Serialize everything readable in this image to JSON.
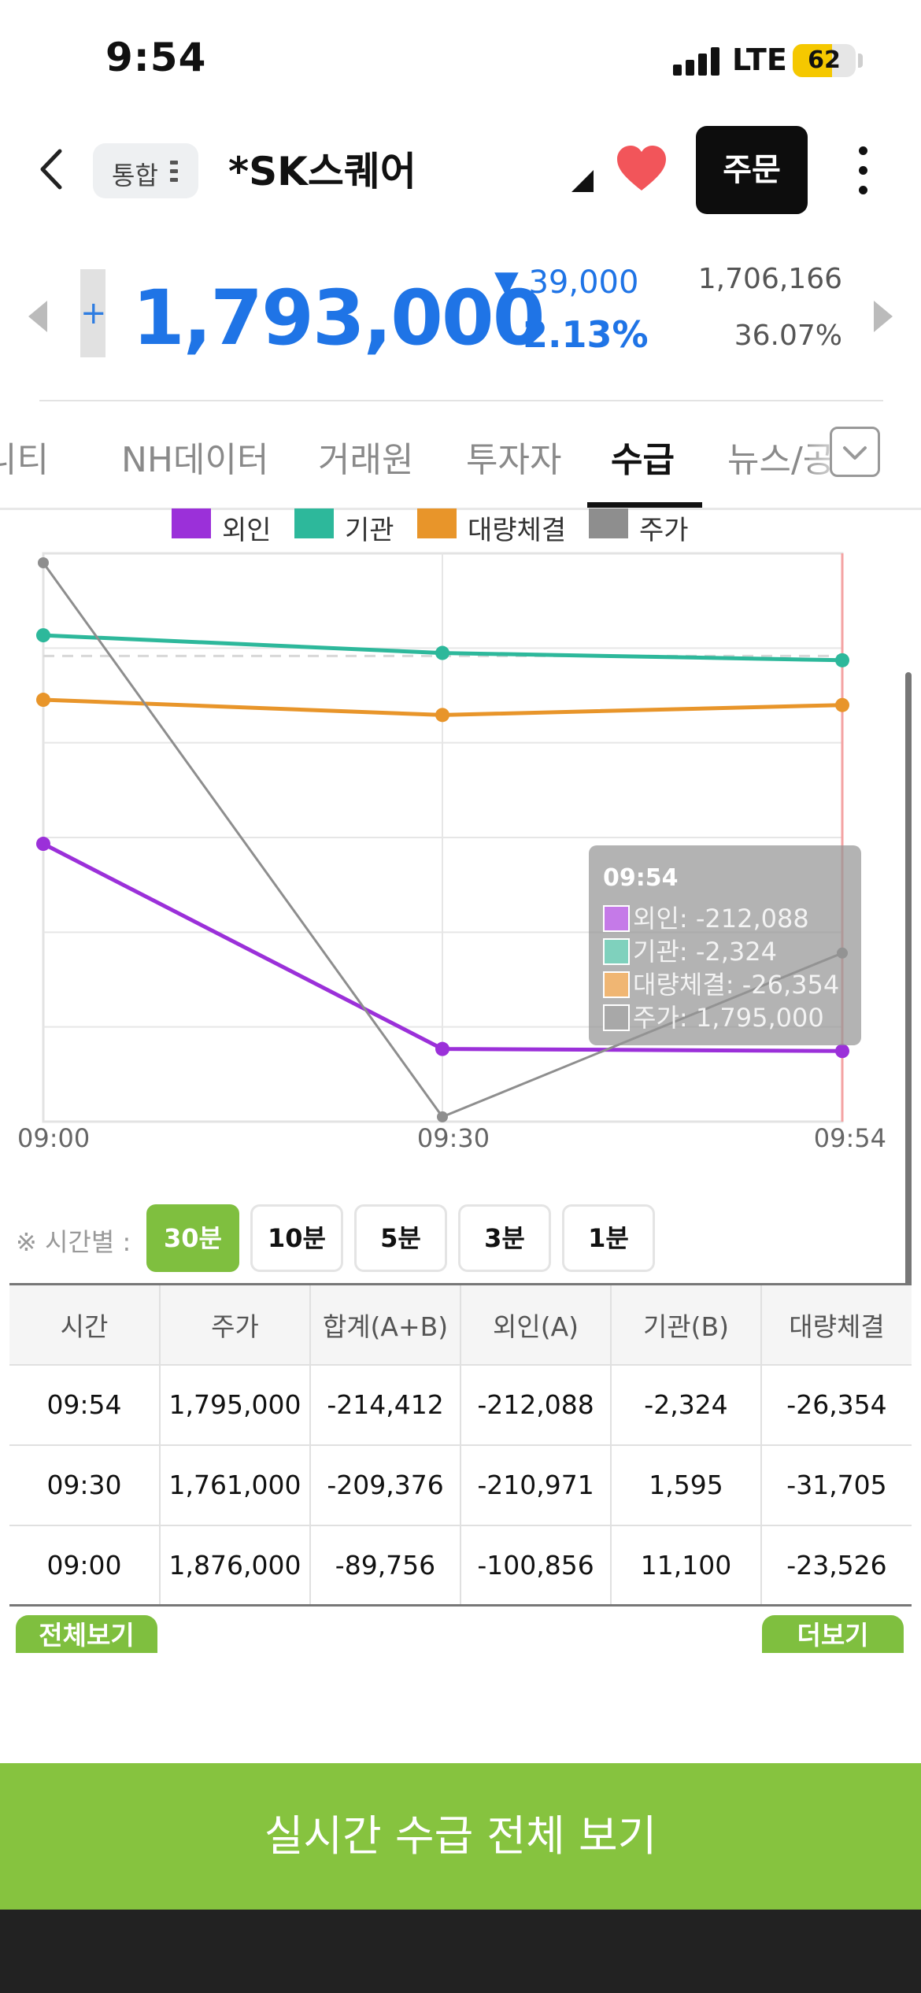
{
  "status_bar": {
    "time": "9:54",
    "network": "LTE",
    "battery": "62",
    "battery_level": 0.62
  },
  "header": {
    "market": "통합",
    "stock_name": "*SK스퀘어",
    "order_label": "주문"
  },
  "price": {
    "plus": "+",
    "current": "1,793,000",
    "change_amount": "▼ 39,000",
    "change_percent": "2.13%",
    "volume": "1,706,166",
    "turnover": "36.07%"
  },
  "tabs": [
    {
      "label": "커뮤니티"
    },
    {
      "label": "NH데이터"
    },
    {
      "label": "거래원"
    },
    {
      "label": "투자자"
    },
    {
      "label": "수급"
    },
    {
      "label": "뉴스/공시"
    }
  ],
  "chart_data": {
    "type": "line",
    "x": [
      "09:00",
      "09:30",
      "09:54"
    ],
    "legend": [
      "외인",
      "기관",
      "대량체결",
      "주가"
    ],
    "series": [
      {
        "name": "외인",
        "color": "#9b30d9",
        "values": [
          -100856,
          -210971,
          -212088
        ]
      },
      {
        "name": "기관",
        "color": "#2db89b",
        "values": [
          11100,
          1595,
          -2324
        ]
      },
      {
        "name": "대량체결",
        "color": "#e8952a",
        "values": [
          -23526,
          -31705,
          -26354
        ]
      },
      {
        "name": "주가",
        "color": "#8e8e8e",
        "values": [
          1876000,
          1761000,
          1795000
        ],
        "axis": "right"
      }
    ],
    "left_range": [
      -250000,
      50000
    ],
    "right_range": [
      1760000,
      1876000
    ],
    "legend_position": "top",
    "grid": true
  },
  "tooltip": {
    "title": "09:54",
    "rows": [
      {
        "label": "외인: -212,088",
        "color": "#c57ae8"
      },
      {
        "label": "기관: -2,324",
        "color": "#7fd1bd"
      },
      {
        "label": "대량체결: -26,354",
        "color": "#f0b673"
      },
      {
        "label": "주가: 1,795,000",
        "color": "#a8a8a8"
      }
    ]
  },
  "interval": {
    "label": "※ 시간별 :",
    "options": [
      "30분",
      "10분",
      "5분",
      "3분",
      "1분"
    ],
    "selected": "30분"
  },
  "table": {
    "headers": [
      "시간",
      "주가",
      "합계(A+B)",
      "외인(A)",
      "기관(B)",
      "대량체결"
    ],
    "rows": [
      [
        "09:54",
        "1,795,000",
        "-214,412",
        "-212,088",
        "-2,324",
        "-26,354"
      ],
      [
        "09:30",
        "1,761,000",
        "-209,376",
        "-210,971",
        "1,595",
        "-31,705"
      ],
      [
        "09:00",
        "1,876,000",
        "-89,756",
        "-100,856",
        "11,100",
        "-23,526"
      ]
    ]
  },
  "buttons": {
    "view_all": "전체보기",
    "more": "더보기",
    "realtime": "실시간 수급 전체 보기"
  },
  "colors": {
    "accent_green": "#86c33f",
    "price_blue": "#1f74e6",
    "negative": "#1a1ad6",
    "positive": "#e21a1a"
  }
}
